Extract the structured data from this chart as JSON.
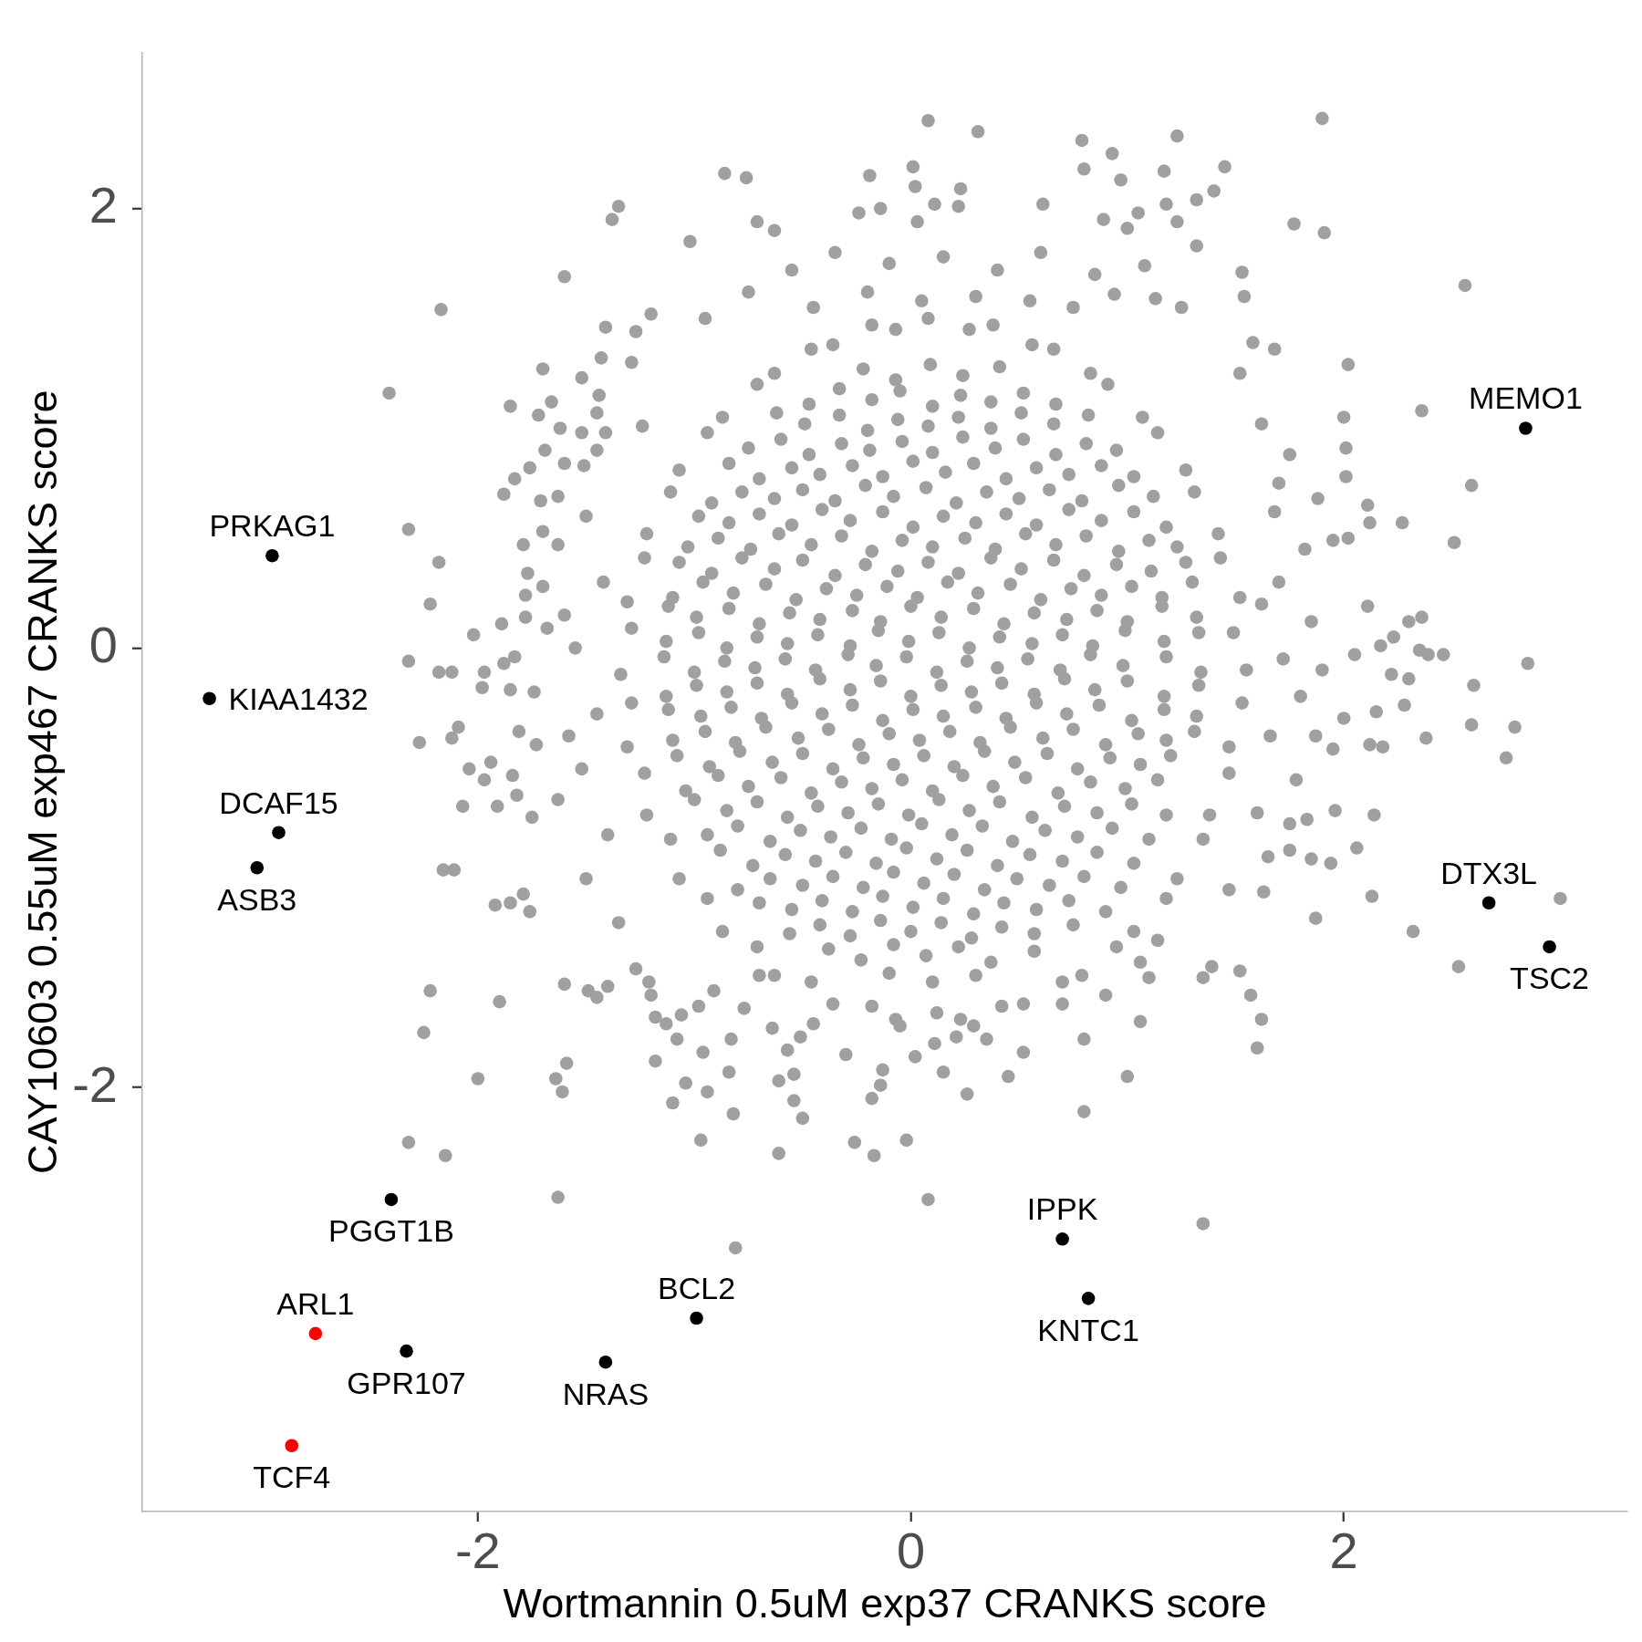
{
  "chart_data": {
    "type": "scatter",
    "xlabel": "Wortmannin 0.5uM exp37 CRANKS score",
    "ylabel": "CAY10603 0.55uM exp467 CRANKS score",
    "xlim": [
      -3.55,
      3.31
    ],
    "ylim": [
      -3.93,
      2.71
    ],
    "xticks": [
      -2,
      0,
      2
    ],
    "yticks": [
      -2,
      0,
      2
    ],
    "marker": "circle",
    "series": [
      {
        "color": "#a0a0a0",
        "x": [
          -0.22,
          -0.07,
          0.09,
          0.24,
          0.41,
          -0.47,
          -0.33,
          -0.18,
          -0.05,
          0.1,
          0.23,
          0.37,
          0.52,
          0.67,
          -0.62,
          -0.49,
          -0.33,
          -0.2,
          -0.06,
          0.08,
          0.22,
          0.37,
          0.51,
          0.66,
          0.82,
          -0.75,
          -0.6,
          -0.47,
          -0.32,
          -0.19,
          -0.04,
          0.1,
          0.24,
          0.39,
          0.52,
          0.67,
          0.81,
          0.95,
          -0.84,
          -0.7,
          -0.55,
          -0.42,
          -0.27,
          -0.13,
          0.01,
          0.16,
          0.29,
          0.44,
          0.58,
          0.73,
          0.88,
          1.03,
          -0.92,
          -0.78,
          -0.63,
          -0.5,
          -0.35,
          -0.21,
          -0.08,
          0.07,
          0.21,
          0.35,
          0.5,
          0.64,
          0.79,
          0.96,
          1.12,
          -0.98,
          -0.84,
          -0.7,
          -0.55,
          -0.41,
          -0.28,
          -0.13,
          0.01,
          0.15,
          0.3,
          0.44,
          0.58,
          0.73,
          0.88,
          1.03,
          1.18,
          -1.03,
          -0.89,
          -0.74,
          -0.61,
          -0.46,
          -0.32,
          -0.18,
          -0.04,
          0.1,
          0.25,
          0.39,
          0.53,
          0.67,
          0.81,
          0.96,
          1.1,
          1.23,
          -1.07,
          -0.92,
          -0.78,
          -0.63,
          -0.5,
          -0.35,
          -0.21,
          -0.06,
          0.08,
          0.22,
          0.37,
          0.51,
          0.66,
          0.8,
          0.95,
          1.11,
          1.27,
          -1.1,
          -0.96,
          -0.82,
          -0.67,
          -0.53,
          -0.39,
          -0.25,
          -0.11,
          0.03,
          0.17,
          0.31,
          0.46,
          0.6,
          0.74,
          0.88,
          1.02,
          1.16,
          1.3,
          -1.12,
          -0.99,
          -0.84,
          -0.7,
          -0.56,
          -0.42,
          -0.27,
          -0.14,
          0,
          0.14,
          0.29,
          0.43,
          0.57,
          0.72,
          0.86,
          1,
          1.16,
          1.32,
          -1.13,
          -0.98,
          -0.85,
          -0.71,
          -0.57,
          -0.43,
          -0.28,
          -0.15,
          -0.01,
          0.13,
          0.27,
          0.41,
          0.56,
          0.7,
          0.84,
          0.99,
          1.17,
          1.33,
          -1.14,
          -1,
          -0.86,
          -0.72,
          -0.58,
          -0.44,
          -0.29,
          -0.16,
          -0.02,
          0.12,
          0.26,
          0.4,
          0.54,
          0.69,
          0.83,
          0.98,
          1.18,
          1.34,
          -1.13,
          -0.99,
          -0.85,
          -0.71,
          -0.57,
          -0.42,
          -0.28,
          -0.14,
          0,
          0.14,
          0.28,
          0.42,
          0.57,
          0.71,
          0.85,
          1,
          1.17,
          1.33,
          -1.12,
          -0.97,
          -0.83,
          -0.69,
          -0.55,
          -0.41,
          -0.27,
          -0.13,
          0.01,
          0.15,
          0.3,
          0.44,
          0.58,
          0.72,
          0.87,
          1.02,
          1.17,
          1.32,
          -1.1,
          -0.95,
          -0.81,
          -0.67,
          -0.52,
          -0.38,
          -0.24,
          -0.1,
          0.04,
          0.18,
          0.32,
          0.46,
          0.61,
          0.75,
          0.9,
          1.05,
          1.18,
          1.31,
          -1.08,
          -0.93,
          -0.79,
          -0.64,
          -0.5,
          -0.36,
          -0.22,
          -0.08,
          0.06,
          0.2,
          0.34,
          0.48,
          0.63,
          0.77,
          0.92,
          1.06,
          1.2,
          -1.04,
          -0.89,
          -0.75,
          -0.6,
          -0.46,
          -0.32,
          -0.18,
          -0.04,
          0.1,
          0.24,
          0.38,
          0.53,
          0.68,
          0.83,
          0.99,
          1.14,
          -1,
          -0.85,
          -0.71,
          -0.57,
          -0.43,
          -0.29,
          -0.15,
          -0.01,
          0.13,
          0.27,
          0.41,
          0.56,
          0.71,
          0.86,
          1.02,
          1.18,
          -0.94,
          -0.8,
          -0.65,
          -0.51,
          -0.37,
          -0.23,
          -0.09,
          0.05,
          0.19,
          0.33,
          0.47,
          0.62,
          0.77,
          0.93,
          1.1,
          -0.88,
          -0.73,
          -0.58,
          -0.44,
          -0.3,
          -0.16,
          -0.02,
          0.12,
          0.26,
          0.4,
          0.55,
          0.7,
          0.86,
          1.03,
          -0.8,
          -0.65,
          -0.5,
          -0.36,
          -0.22,
          -0.08,
          0.06,
          0.2,
          0.34,
          0.49,
          0.64,
          0.8,
          0.97,
          -0.7,
          -0.55,
          -0.41,
          -0.27,
          -0.13,
          0.01,
          0.15,
          0.29,
          0.43,
          0.58,
          0.73,
          0.9,
          -0.56,
          -0.42,
          -0.28,
          -0.14,
          0,
          0.14,
          0.28,
          0.42,
          0.57,
          0.75,
          -0.38,
          -0.23,
          -0.08,
          0.07,
          0.22,
          0.37,
          0.57,
          -0.1,
          0.1,
          0.3,
          1.55,
          1.49,
          1.52,
          1.43,
          1.42,
          1.31,
          1.27,
          1.14,
          1.07,
          0.91,
          0.83,
          0.66,
          0.56,
          0.38,
          0.27,
          0.08,
          -0.07,
          -0.18,
          -0.36,
          -0.46,
          -0.63,
          -0.71,
          -0.87,
          -0.94,
          -1.07,
          -1.11,
          -1.22,
          -1.23,
          -1.31,
          -1.29,
          -1.34,
          -1.29,
          -1.31,
          -1.23,
          -1.22,
          -1.11,
          -1.07,
          -0.94,
          -0.87,
          -0.71,
          -0.63,
          -0.46,
          -0.36,
          -0.18,
          -0.07,
          0.12,
          0.23,
          0.42,
          0.52,
          0.7,
          0.79,
          0.95,
          1.03,
          1.18,
          1.23,
          1.35,
          1.38,
          1.47,
          1.47,
          1.53,
          -0.55,
          -0.35,
          -0.1,
          0.15,
          0.4,
          0.6,
          0.85,
          -0.75,
          -0.2,
          0.3,
          0.55,
          1.25,
          -0.95,
          -0.45,
          0.05,
          0.75,
          1.62,
          1.75,
          1.68,
          1.82,
          1.7,
          1.85,
          1.72,
          1.8,
          1.66,
          1.78,
          1.6,
          1.7,
          1.88,
          1.62,
          1.9,
          1.65,
          1.52,
          -1.45,
          -1.5,
          -1.42,
          -1.55,
          -1.45,
          -1.52,
          -1.4,
          -1.5,
          -1.35,
          -1.6,
          -1.58,
          -0.3,
          0.45,
          0.7,
          0.9,
          -0.05,
          0.08,
          1.9,
          0.31,
          0.79,
          0.93,
          1.23,
          -0.19,
          0.01,
          0.8,
          1.17,
          1.45,
          0.97,
          0.02,
          0.23,
          -0.24,
          -0.14,
          0.11,
          0.22,
          0.61,
          1.18,
          1.4,
          1.32,
          0.03,
          0.89,
          1.05,
          1.23,
          1,
          1.77,
          1.91,
          1.32,
          1.53,
          1.54,
          2.56,
          1.08,
          0.94,
          1.13,
          1.58,
          1.68,
          2.02,
          2.36,
          2,
          2.01,
          2.01,
          2.59,
          2.27,
          2.51,
          2.11,
          2.12,
          2.02,
          1.95,
          2.11,
          2.3,
          2.36,
          2.05,
          2.17,
          2.23,
          2.35,
          2.39,
          2.46,
          2.85,
          2.22,
          2.3,
          2.6,
          2.28,
          2.15,
          2,
          2.59,
          2.79,
          2.38,
          2.75,
          2.12,
          2.18,
          1.95,
          2.14,
          1.96,
          1.83,
          1.75,
          1.87,
          1.75,
          1.85,
          1.94,
          2.06,
          2.13,
          2.32,
          2.53,
          3,
          1.87,
          1.63,
          1.47,
          1.52,
          1.39,
          1.35,
          1.57,
          1.62,
          1.6,
          1,
          0.8,
          0.8,
          0.52,
          0.26,
          0.15,
          -0.02,
          -0.17,
          -0.26,
          -0.18,
          0.08,
          1.35,
          1.06,
          1.06,
          1.1,
          1.14,
          0.29,
          0.35,
          0.21,
          0.11,
          0.02,
          -0.14,
          -0.13,
          -2.22,
          -2.25,
          -1.9,
          -2,
          -1.64,
          -1.61,
          -1.59,
          -2.32,
          -2.15,
          -1.63,
          -0.81,
          -1.6,
          -1.49,
          -1.45,
          -1.4,
          -1.92,
          -1.85,
          -1.79,
          -1.76,
          -2.16,
          -2.11,
          -1.18,
          -1.1,
          -0.97,
          -1.04,
          -0.94,
          -0.84,
          -0.82,
          -0.61,
          -0.61,
          -0.54,
          -0.5,
          -0.54,
          -0.96,
          -1.08,
          -1.18,
          -1.13,
          -1.06,
          -0.98,
          -0.91,
          -1.2,
          -1.27,
          -1.21,
          -0.83,
          -0.77,
          -0.7,
          -0.64,
          -0.57,
          -0.51,
          -0.45,
          -0.86,
          -0.76,
          -1.35,
          -1.38,
          -0.71,
          -0.63,
          -1.02,
          -1.6,
          -2.17,
          -1.41,
          -1.27,
          -1.2,
          -1.7,
          -1.43,
          -1.29,
          -1.52,
          -2.41,
          -1.85,
          -1.66,
          -1.72,
          -1.44,
          -1.45,
          -1.62,
          -1.52,
          -1.41,
          -1.24,
          -1.69,
          -1.6,
          -1.76,
          -1.51,
          -1.83,
          -1.88,
          -1.63,
          -1.71,
          -2.32,
          -1.7,
          -1.79,
          -1.63,
          -2.18,
          -1.77,
          -1.7,
          -1.78,
          -2.22,
          -2.02,
          -1.89,
          -1.78,
          -1.68,
          -2.32,
          -2.18,
          -2.12,
          -1.97,
          -1.88,
          -1.83,
          -1.98,
          -1.85,
          -1.74,
          -2.09,
          -2.12,
          -2.27,
          -1.81,
          -1.73,
          -2.04,
          -1.94,
          -1.97,
          -1.84,
          -2.07,
          -1.91,
          -1.82,
          -1.75,
          -1.63
        ],
        "values": [
          1.27,
          1.22,
          1.29,
          1.24,
          1.28,
          1.11,
          1.18,
          1.13,
          1.17,
          1.1,
          1.15,
          1.12,
          1.16,
          1.11,
          1.07,
          1.02,
          1.06,
          0.99,
          1.04,
          1.01,
          1.05,
          1,
          1.07,
          1.02,
          1.06,
          0.91,
          0.95,
          0.88,
          0.93,
          0.9,
          0.94,
          0.89,
          0.96,
          0.91,
          0.95,
          0.88,
          0.93,
          0.9,
          0.84,
          0.77,
          0.82,
          0.79,
          0.83,
          0.78,
          0.85,
          0.8,
          0.84,
          0.77,
          0.82,
          0.79,
          0.83,
          0.78,
          0.66,
          0.71,
          0.68,
          0.72,
          0.67,
          0.74,
          0.69,
          0.73,
          0.66,
          0.71,
          0.68,
          0.72,
          0.67,
          0.74,
          0.69,
          0.6,
          0.57,
          0.61,
          0.56,
          0.63,
          0.58,
          0.62,
          0.55,
          0.6,
          0.57,
          0.61,
          0.56,
          0.63,
          0.58,
          0.62,
          0.55,
          0.46,
          0.5,
          0.45,
          0.52,
          0.47,
          0.51,
          0.44,
          0.49,
          0.46,
          0.5,
          0.45,
          0.52,
          0.47,
          0.51,
          0.44,
          0.49,
          0.46,
          0.39,
          0.34,
          0.41,
          0.36,
          0.4,
          0.33,
          0.38,
          0.35,
          0.39,
          0.34,
          0.41,
          0.36,
          0.4,
          0.33,
          0.38,
          0.35,
          0.39,
          0.23,
          0.3,
          0.25,
          0.29,
          0.22,
          0.27,
          0.24,
          0.28,
          0.23,
          0.3,
          0.25,
          0.29,
          0.22,
          0.27,
          0.24,
          0.28,
          0.23,
          0.3,
          0.19,
          0.14,
          0.18,
          0.11,
          0.16,
          0.13,
          0.17,
          0.12,
          0.19,
          0.14,
          0.18,
          0.11,
          0.16,
          0.13,
          0.17,
          0.12,
          0.19,
          0.14,
          0.03,
          0.07,
          0,
          0.05,
          0.02,
          0.06,
          0.01,
          0.08,
          0.03,
          0.07,
          0,
          0.05,
          0.02,
          0.06,
          0.01,
          0.08,
          0.03,
          0.07,
          -0.04,
          -0.11,
          -0.06,
          -0.09,
          -0.05,
          -0.1,
          -0.03,
          -0.08,
          -0.04,
          -0.11,
          -0.06,
          -0.09,
          -0.05,
          -0.1,
          -0.03,
          -0.08,
          -0.04,
          -0.11,
          -0.22,
          -0.17,
          -0.2,
          -0.16,
          -0.21,
          -0.14,
          -0.19,
          -0.15,
          -0.22,
          -0.17,
          -0.2,
          -0.16,
          -0.21,
          -0.14,
          -0.19,
          -0.15,
          -0.22,
          -0.17,
          -0.28,
          -0.31,
          -0.27,
          -0.32,
          -0.25,
          -0.3,
          -0.26,
          -0.33,
          -0.28,
          -0.31,
          -0.27,
          -0.32,
          -0.25,
          -0.3,
          -0.26,
          -0.33,
          -0.28,
          -0.31,
          -0.42,
          -0.38,
          -0.43,
          -0.36,
          -0.41,
          -0.37,
          -0.44,
          -0.39,
          -0.42,
          -0.38,
          -0.43,
          -0.36,
          -0.41,
          -0.37,
          -0.44,
          -0.39,
          -0.42,
          -0.38,
          -0.49,
          -0.54,
          -0.47,
          -0.52,
          -0.48,
          -0.55,
          -0.5,
          -0.53,
          -0.49,
          -0.54,
          -0.47,
          -0.52,
          -0.48,
          -0.55,
          -0.5,
          -0.53,
          -0.49,
          -0.65,
          -0.58,
          -0.63,
          -0.59,
          -0.66,
          -0.61,
          -0.64,
          -0.6,
          -0.65,
          -0.58,
          -0.63,
          -0.59,
          -0.66,
          -0.61,
          -0.64,
          -0.6,
          -0.69,
          -0.74,
          -0.7,
          -0.77,
          -0.72,
          -0.75,
          -0.71,
          -0.76,
          -0.69,
          -0.74,
          -0.7,
          -0.77,
          -0.72,
          -0.75,
          -0.71,
          -0.76,
          -0.85,
          -0.81,
          -0.88,
          -0.83,
          -0.86,
          -0.82,
          -0.87,
          -0.8,
          -0.85,
          -0.81,
          -0.88,
          -0.83,
          -0.86,
          -0.82,
          -0.87,
          -0.92,
          -0.99,
          -0.94,
          -0.97,
          -0.93,
          -0.98,
          -0.91,
          -0.96,
          -0.92,
          -0.99,
          -0.94,
          -0.97,
          -0.93,
          -0.98,
          -1.1,
          -1.05,
          -1.08,
          -1.04,
          -1.09,
          -1.02,
          -1.07,
          -1.03,
          -1.1,
          -1.05,
          -1.08,
          -1.04,
          -1.09,
          -1.16,
          -1.19,
          -1.15,
          -1.2,
          -1.13,
          -1.18,
          -1.14,
          -1.21,
          -1.16,
          -1.19,
          -1.15,
          -1.2,
          -1.3,
          -1.26,
          -1.31,
          -1.24,
          -1.29,
          -1.25,
          -1.32,
          -1.27,
          -1.3,
          -1.26,
          -1.37,
          -1.42,
          -1.35,
          -1.4,
          -1.36,
          -1.43,
          -1.38,
          -1.48,
          -1.52,
          -1.49,
          -0.1,
          0.07,
          0.23,
          0.41,
          0.52,
          0.71,
          0.81,
          0.98,
          1.05,
          1.2,
          1.25,
          1.36,
          1.38,
          1.47,
          1.45,
          1.5,
          1.45,
          1.47,
          1.38,
          1.36,
          1.25,
          1.2,
          1.05,
          0.98,
          0.81,
          0.71,
          0.52,
          0.41,
          0.21,
          0.09,
          -0.12,
          -0.25,
          -0.45,
          -0.57,
          -0.76,
          -0.87,
          -1.05,
          -1.14,
          -1.29,
          -1.36,
          -1.49,
          -1.52,
          -1.62,
          -1.63,
          -1.69,
          -1.66,
          -1.69,
          -1.63,
          -1.62,
          -1.52,
          -1.49,
          -1.36,
          -1.29,
          -1.14,
          -1.05,
          -0.87,
          -0.76,
          -0.57,
          -0.45,
          -0.25,
          1.72,
          1.8,
          1.75,
          1.78,
          1.72,
          1.8,
          1.7,
          1.62,
          1.62,
          1.6,
          1.58,
          1.55,
          1.5,
          1.55,
          1.58,
          1.55,
          1.02,
          0.88,
          0.62,
          0.45,
          0.3,
          0.12,
          -0.05,
          -0.22,
          -0.4,
          -0.6,
          -0.75,
          0.75,
          0.68,
          0.2,
          -0.1,
          -0.95,
          1.25,
          0.9,
          0.6,
          0.3,
          0,
          -0.3,
          -0.55,
          -0.85,
          -1.05,
          -1.25,
          0.15,
          -0.4,
          -1.85,
          -1.95,
          -1.62,
          -1.58,
          -1.72,
          2.4,
          2.41,
          2.35,
          2.31,
          2.25,
          2.33,
          2.15,
          2.19,
          2.18,
          2.17,
          2.19,
          2.13,
          2.1,
          2.09,
          1.98,
          2,
          2.02,
          2.01,
          2.02,
          2.02,
          2.08,
          2.04,
          1.94,
          1.95,
          1.98,
          1.94,
          1.91,
          1.93,
          1.89,
          1.83,
          1.71,
          1.6,
          1.65,
          1.74,
          1.61,
          1.59,
          1.39,
          1.36,
          1.29,
          1.08,
          1.05,
          0.91,
          0.78,
          0.74,
          0.57,
          0.48,
          0.65,
          0.57,
          0.5,
          0.49,
          0.19,
          0.12,
          0.14,
          -0.03,
          0.01,
          0.05,
          -0.01,
          -0.03,
          -0.03,
          -0.07,
          -0.12,
          -0.14,
          -0.17,
          -0.26,
          -0.29,
          -0.32,
          -0.35,
          -0.36,
          -0.41,
          -0.5,
          -0.44,
          -0.45,
          -0.46,
          -0.76,
          -0.74,
          -0.78,
          -0.8,
          -0.4,
          -0.92,
          -0.96,
          -0.98,
          -0.91,
          -1.13,
          -1.29,
          -1.45,
          -1.14,
          -1.23,
          -1.11,
          -1.1,
          -1.47,
          -1.45,
          -1.5,
          -1.58,
          -1.69,
          -1.82,
          -1.95,
          -2.11,
          -1.78,
          -1.84,
          -2.03,
          -1.93,
          -2.24,
          -2.31,
          -2.25,
          -2.05,
          -2.51,
          -2.62,
          -1.7,
          -1.43,
          -1.5,
          -1.33,
          -1.72,
          -1.78,
          -1.77,
          -1.8,
          -1.86,
          -1.99,
          -1.92,
          -1.56,
          -1.75,
          -1.61,
          -1.96,
          -1.96,
          -2.02,
          -1.89,
          -2.25,
          -2.31,
          -2.5,
          -2.73,
          -1.53,
          -1.56,
          -1.59,
          -1.54,
          -1.17,
          -1.16,
          -1.12,
          -1.2,
          -1.01,
          -1.01,
          -1.88,
          -2.07,
          -2.24,
          -1.98,
          -2.02,
          -1.93,
          -2.12,
          -2.3,
          -1.97,
          -1.94,
          -2.14,
          -2.06,
          -1.84,
          -1.78,
          -1.68,
          -1.71,
          -1.67,
          -1.63,
          -1.56,
          -1.58,
          -1.46,
          -1.52,
          -1.78,
          -1.64,
          -1.49,
          -1.73,
          -1.83,
          -1.77,
          -1.71,
          2.16,
          2.14,
          2.01,
          1.95,
          1.94,
          1.9,
          1.85,
          1.69,
          1.54,
          1.46,
          1.44,
          1.52,
          1.27,
          1.32,
          1.3,
          1.23,
          1.16,
          1.1,
          1.12,
          1.06,
          1.15,
          1.07,
          1,
          0.98,
          0.98,
          1.01,
          0.9,
          0.84,
          0.82,
          0.83,
          0.77,
          0.7,
          0.69,
          0.67,
          0.54,
          0.53,
          0.47,
          0.47,
          0.39,
          0.34,
          0.28,
          0.24,
          0.2,
          0.06,
          0.11,
          0.14,
          0.09,
          -0.06,
          -0.11,
          -0.11,
          -0.11,
          -0.07,
          -0.04,
          -0.18,
          -0.19,
          -0.2,
          -0.36,
          -0.41,
          -0.43,
          -0.38,
          -0.44,
          -0.55,
          -0.52,
          -0.6,
          -0.58,
          -0.72,
          -0.72,
          -0.67,
          -0.77,
          -0.69
        ]
      },
      {
        "color": "#000000",
        "x": [
          2.84,
          -2.95,
          -3.24,
          -2.92,
          -3.02,
          2.67,
          2.95,
          -2.4,
          0.7,
          0.82,
          -0.99,
          -2.33,
          -1.41
        ],
        "values": [
          1,
          0.42,
          -0.23,
          -0.84,
          -1,
          -1.16,
          -1.36,
          -2.51,
          -2.69,
          -2.96,
          -3.05,
          -3.2,
          -3.25
        ]
      },
      {
        "color": "#ff0000",
        "x": [
          -2.75,
          -2.86
        ],
        "values": [
          -3.12,
          -3.63
        ]
      }
    ],
    "annotations": [
      {
        "text": "MEMO1",
        "x": 2.84,
        "y": 1
      },
      {
        "text": "PRKAG1",
        "x": -2.95,
        "y": 0.42
      },
      {
        "text": "KIAA1432",
        "x": -3.24,
        "y": -0.23
      },
      {
        "text": "DCAF15",
        "x": -2.92,
        "y": -0.84
      },
      {
        "text": "ASB3",
        "x": -3.02,
        "y": -1
      },
      {
        "text": "DTX3L",
        "x": 2.67,
        "y": -1.16
      },
      {
        "text": "TSC2",
        "x": 2.95,
        "y": -1.36
      },
      {
        "text": "PGGT1B",
        "x": -2.4,
        "y": -2.51
      },
      {
        "text": "IPPK",
        "x": 0.7,
        "y": -2.69
      },
      {
        "text": "KNTC1",
        "x": 0.82,
        "y": -2.96
      },
      {
        "text": "BCL2",
        "x": -0.99,
        "y": -3.05
      },
      {
        "text": "ARL1",
        "x": -2.75,
        "y": -3.12
      },
      {
        "text": "GPR107",
        "x": -2.33,
        "y": -3.2
      },
      {
        "text": "NRAS",
        "x": -1.41,
        "y": -3.25
      },
      {
        "text": "TCF4",
        "x": -2.86,
        "y": -3.63
      }
    ]
  }
}
